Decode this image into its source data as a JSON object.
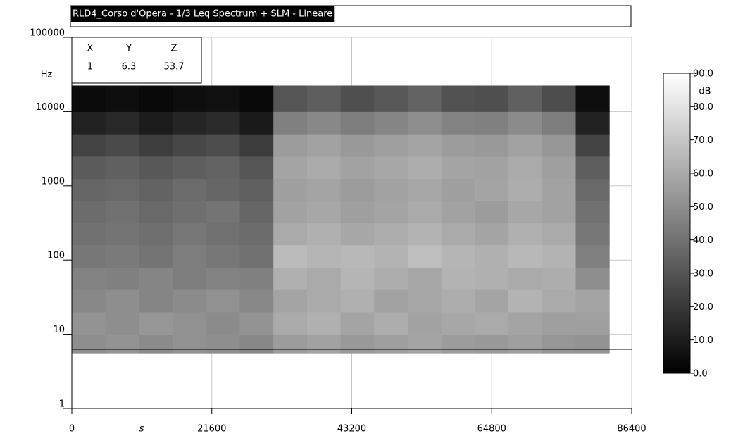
{
  "chart_data": {
    "type": "heatmap",
    "title": "RLD4_Corso d'Opera - 1/3 Leq Spectrum + SLM - Lineare",
    "x_label": "s",
    "y_label": "Hz",
    "xlim": [
      0,
      86400
    ],
    "xticks": [
      0,
      21600,
      43200,
      64800,
      86400
    ],
    "ylim": [
      1,
      100000
    ],
    "yticks": [
      1,
      10,
      100,
      1000,
      10000,
      100000
    ],
    "y_scale": "log",
    "grid": true,
    "x_bins": [
      0,
      5184,
      10368,
      15552,
      20736,
      25920,
      31104,
      36288,
      41472,
      46656,
      51840,
      57024,
      62208,
      67392,
      72576,
      77760,
      82944
    ],
    "y_bins": [
      5.6,
      10,
      20,
      40,
      80,
      160,
      315,
      630,
      1250,
      2500,
      5000,
      10000,
      22400
    ],
    "z": [
      [
        50,
        52,
        49,
        51,
        50,
        48,
        55,
        57,
        54,
        56,
        58,
        55,
        54,
        56,
        53,
        52
      ],
      [
        52,
        50,
        53,
        51,
        49,
        52,
        60,
        62,
        58,
        61,
        57,
        59,
        60,
        58,
        56,
        56
      ],
      [
        48,
        50,
        47,
        49,
        51,
        48,
        58,
        60,
        62,
        57,
        59,
        61,
        58,
        63,
        60,
        58
      ],
      [
        46,
        45,
        47,
        44,
        46,
        45,
        62,
        60,
        64,
        61,
        59,
        63,
        62,
        60,
        61,
        50
      ],
      [
        42,
        43,
        41,
        44,
        42,
        40,
        66,
        64,
        65,
        63,
        67,
        64,
        62,
        65,
        63,
        45
      ],
      [
        40,
        41,
        39,
        42,
        40,
        38,
        60,
        62,
        59,
        61,
        63,
        60,
        58,
        62,
        60,
        42
      ],
      [
        38,
        40,
        37,
        39,
        41,
        36,
        57,
        59,
        56,
        58,
        60,
        57,
        55,
        59,
        57,
        40
      ],
      [
        36,
        37,
        35,
        38,
        36,
        34,
        56,
        58,
        55,
        57,
        59,
        56,
        58,
        61,
        57,
        37
      ],
      [
        32,
        34,
        31,
        33,
        35,
        30,
        58,
        60,
        57,
        59,
        61,
        58,
        57,
        60,
        56,
        33
      ],
      [
        24,
        26,
        22,
        25,
        27,
        21,
        55,
        57,
        54,
        56,
        58,
        55,
        54,
        57,
        53,
        24
      ],
      [
        12,
        14,
        10,
        13,
        15,
        9,
        45,
        48,
        44,
        47,
        50,
        46,
        45,
        49,
        44,
        12
      ],
      [
        4,
        5,
        3,
        5,
        6,
        3,
        30,
        33,
        28,
        31,
        35,
        29,
        28,
        34,
        27,
        5
      ]
    ],
    "colorbar": {
      "label": "dB",
      "zlim": [
        0,
        90
      ],
      "ticks": [
        {
          "value": 0,
          "label": "0.0"
        },
        {
          "value": 10,
          "label": "10.0"
        },
        {
          "value": 20,
          "label": "20.0"
        },
        {
          "value": 30,
          "label": "30.0"
        },
        {
          "value": 40,
          "label": "40.0"
        },
        {
          "value": 50,
          "label": "50.0"
        },
        {
          "value": 60,
          "label": "60.0"
        },
        {
          "value": 70,
          "label": "70.0"
        },
        {
          "value": 80,
          "label": "80.0"
        },
        {
          "value": 90,
          "label": "90.0"
        }
      ]
    },
    "cursor": {
      "headers": [
        "X",
        "Y",
        "Z"
      ],
      "x": 1,
      "y": 6.3,
      "z": 53.7
    }
  }
}
